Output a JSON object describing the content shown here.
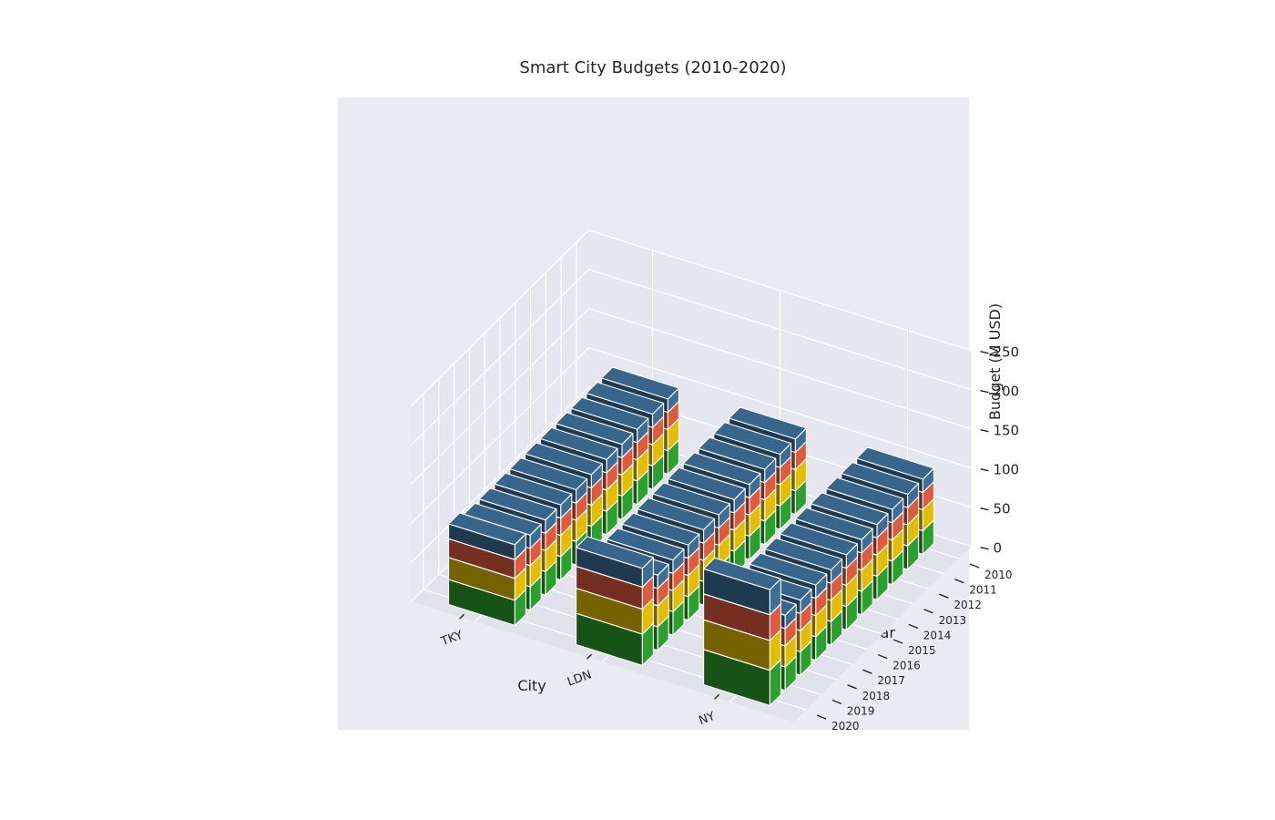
{
  "chart_data": {
    "type": "bar",
    "subtype": "stacked-3d",
    "title": "Smart City Budgets (2010-2020)",
    "xlabel": "City",
    "ylabel": "Year",
    "zlabel": "Budget (M USD)",
    "categories": [
      "TKY",
      "LDN",
      "NY"
    ],
    "years": [
      "2010",
      "2011",
      "2012",
      "2013",
      "2014",
      "2015",
      "2016",
      "2017",
      "2018",
      "2019",
      "2020"
    ],
    "zlim": [
      0,
      250
    ],
    "zticks": [
      "0",
      "50",
      "100",
      "150",
      "200",
      "250"
    ],
    "grid": true,
    "series_colors": [
      "#2ca02c",
      "#e2bd00",
      "#e05a3e",
      "#3c6e98"
    ],
    "series": [
      {
        "city": "TKY",
        "segments": [
          [
            30,
            27,
            22,
            17
          ],
          [
            30,
            27,
            22,
            17
          ],
          [
            30,
            27,
            22,
            17
          ],
          [
            30,
            27,
            22,
            17
          ],
          [
            30,
            27,
            22,
            17
          ],
          [
            30,
            27,
            22,
            17
          ],
          [
            30,
            27,
            22,
            17
          ],
          [
            30,
            27,
            22,
            17
          ],
          [
            30,
            27,
            22,
            17
          ],
          [
            30,
            27,
            22,
            17
          ],
          [
            32,
            28,
            24,
            19
          ]
        ]
      },
      {
        "city": "LDN",
        "segments": [
          [
            30,
            27,
            22,
            17
          ],
          [
            30,
            27,
            22,
            17
          ],
          [
            30,
            27,
            22,
            17
          ],
          [
            30,
            27,
            22,
            17
          ],
          [
            30,
            27,
            22,
            17
          ],
          [
            30,
            27,
            22,
            17
          ],
          [
            30,
            27,
            22,
            17
          ],
          [
            30,
            27,
            22,
            17
          ],
          [
            30,
            27,
            22,
            17
          ],
          [
            30,
            27,
            22,
            17
          ],
          [
            40,
            32,
            28,
            24
          ]
        ]
      },
      {
        "city": "NY",
        "segments": [
          [
            30,
            27,
            22,
            17
          ],
          [
            30,
            27,
            22,
            17
          ],
          [
            30,
            27,
            22,
            17
          ],
          [
            30,
            27,
            22,
            17
          ],
          [
            30,
            27,
            22,
            17
          ],
          [
            30,
            27,
            22,
            17
          ],
          [
            30,
            27,
            22,
            17
          ],
          [
            30,
            27,
            22,
            17
          ],
          [
            30,
            27,
            22,
            17
          ],
          [
            30,
            27,
            22,
            17
          ],
          [
            45,
            38,
            33,
            32
          ]
        ]
      }
    ]
  }
}
